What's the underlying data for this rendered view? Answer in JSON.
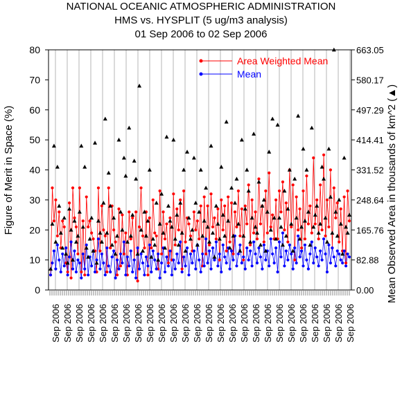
{
  "chart_data": {
    "type": "line",
    "title": "NATIONAL OCEANIC ATMOSPHERIC ADMINISTRATION",
    "subtitle": "HMS vs. HYSPLIT (5 ug/m3 analysis)",
    "date_range": "01 Sep 2006 to 02 Sep 2006",
    "ylabel": "Figure of Merit in Space (%)",
    "y2label": "Mean Observed Area in thousands of km^2",
    "y2marker": "▲",
    "ylim": [
      0,
      80
    ],
    "yticks": [
      0,
      10,
      20,
      30,
      40,
      50,
      60,
      70,
      80
    ],
    "y2ticks": [
      "0.00",
      "82.88",
      "165.76",
      "248.64",
      "331.52",
      "414.41",
      "497.29",
      "580.17",
      "663.05"
    ],
    "xtick_label": "Sep 2006",
    "legend_position": "top-right",
    "series": [
      {
        "name": "Area Weighted Mean",
        "color": "#ff0000",
        "marker": "circle",
        "values": [
          5,
          34,
          23,
          30,
          18,
          26,
          14,
          23,
          21,
          9,
          6,
          29,
          4,
          34,
          24,
          21,
          12,
          34,
          6,
          23,
          5,
          31,
          21,
          23,
          19,
          17,
          13,
          6,
          34,
          13,
          28,
          20,
          18,
          6,
          34,
          14,
          28,
          20,
          16,
          5,
          27,
          8,
          25,
          12,
          19,
          5,
          26,
          17,
          24,
          10,
          26,
          3,
          21,
          34,
          18,
          14,
          26,
          5,
          24,
          14,
          30,
          19,
          18,
          7,
          33,
          12,
          26,
          17,
          22,
          9,
          24,
          10,
          32,
          15,
          27,
          20,
          30,
          7,
          33,
          16,
          24,
          22,
          18,
          13,
          26,
          20,
          23,
          17,
          28,
          8,
          31,
          12,
          28,
          15,
          32,
          21,
          24,
          17,
          27,
          10,
          30,
          20,
          28,
          13,
          31,
          16,
          29,
          12,
          26,
          21,
          33,
          18,
          27,
          10,
          28,
          22,
          35,
          15,
          30,
          19,
          26,
          17,
          37,
          22,
          28,
          16,
          33,
          19,
          39,
          21,
          25,
          17,
          30,
          17,
          33,
          26,
          36,
          20,
          29,
          16,
          40,
          21,
          35,
          10,
          31,
          20,
          27,
          14,
          33,
          17,
          38,
          22,
          28,
          19,
          44,
          22,
          30,
          17,
          35,
          20,
          45,
          18,
          30,
          21,
          40,
          14,
          34,
          24,
          29,
          16,
          27,
          13,
          31,
          9,
          33,
          23
        ]
      },
      {
        "name": "Mean",
        "color": "#0000ff",
        "marker": "circle",
        "values": [
          5,
          9,
          13,
          7,
          15,
          10,
          6,
          12,
          8,
          14,
          5,
          11,
          16,
          7,
          13,
          6,
          10,
          9,
          4,
          12,
          7,
          15,
          5,
          11,
          8,
          13,
          6,
          10,
          17,
          7,
          12,
          9,
          5,
          14,
          8,
          6,
          11,
          13,
          4,
          10,
          7,
          12,
          9,
          16,
          5,
          11,
          8,
          13,
          6,
          10,
          4,
          14,
          7,
          12,
          9,
          5,
          11,
          8,
          15,
          6,
          13,
          10,
          7,
          12,
          4,
          9,
          14,
          6,
          11,
          8,
          13,
          5,
          10,
          7,
          12,
          9,
          16,
          6,
          11,
          8,
          14,
          5,
          12,
          9,
          13,
          7,
          15,
          10,
          6,
          12,
          8,
          17,
          9,
          13,
          7,
          14,
          10,
          16,
          8,
          12,
          6,
          15,
          11,
          9,
          14,
          7,
          13,
          10,
          18,
          8,
          12,
          15,
          9,
          11,
          7,
          14,
          10,
          13,
          8,
          16,
          12,
          9,
          14,
          11,
          7,
          15,
          10,
          13,
          8,
          17,
          12,
          9,
          14,
          6,
          16,
          11,
          19,
          8,
          13,
          10,
          15,
          12,
          7,
          14,
          9,
          18,
          11,
          13,
          8,
          15,
          10,
          7,
          12,
          16,
          9,
          14,
          11,
          8,
          13,
          10,
          17,
          12,
          6,
          15,
          9,
          14,
          11,
          8,
          13,
          12,
          10,
          9,
          13,
          8,
          12,
          11
        ]
      },
      {
        "name": "Mean Observed Area",
        "color": "#000000",
        "marker": "triangle",
        "values": [
          7,
          22,
          48,
          16,
          41,
          28,
          19,
          14,
          24,
          12,
          9,
          27,
          20,
          10,
          23,
          16,
          18,
          26,
          48,
          21,
          41,
          14,
          11,
          17,
          24,
          13,
          49,
          9,
          23,
          19,
          16,
          29,
          57,
          19,
          39,
          28,
          15,
          24,
          12,
          18,
          50,
          26,
          20,
          44,
          38,
          16,
          54,
          18,
          25,
          43,
          37,
          12,
          68,
          20,
          13,
          26,
          18,
          23,
          40,
          11,
          17,
          15,
          29,
          10,
          22,
          32,
          19,
          14,
          51,
          28,
          23,
          21,
          50,
          17,
          25,
          15,
          29,
          19,
          40,
          13,
          46,
          24,
          17,
          20,
          44,
          29,
          15,
          26,
          40,
          18,
          23,
          34,
          21,
          16,
          48,
          19,
          11,
          28,
          22,
          17,
          41,
          25,
          18,
          56,
          23,
          14,
          34,
          18,
          29,
          37,
          22,
          13,
          50,
          18,
          27,
          40,
          33,
          16,
          24,
          52,
          21,
          19,
          36,
          15,
          28,
          30,
          13,
          26,
          46,
          20,
          57,
          24,
          17,
          55,
          24,
          21,
          15,
          33,
          18,
          27,
          40,
          22,
          13,
          37,
          24,
          58,
          17,
          21,
          47,
          23,
          40,
          26,
          15,
          54,
          21,
          25,
          28,
          19,
          22,
          41,
          37,
          24,
          16,
          47,
          31,
          19,
          80,
          26,
          18,
          30,
          22,
          12,
          44,
          21,
          19,
          25
        ]
      }
    ]
  }
}
